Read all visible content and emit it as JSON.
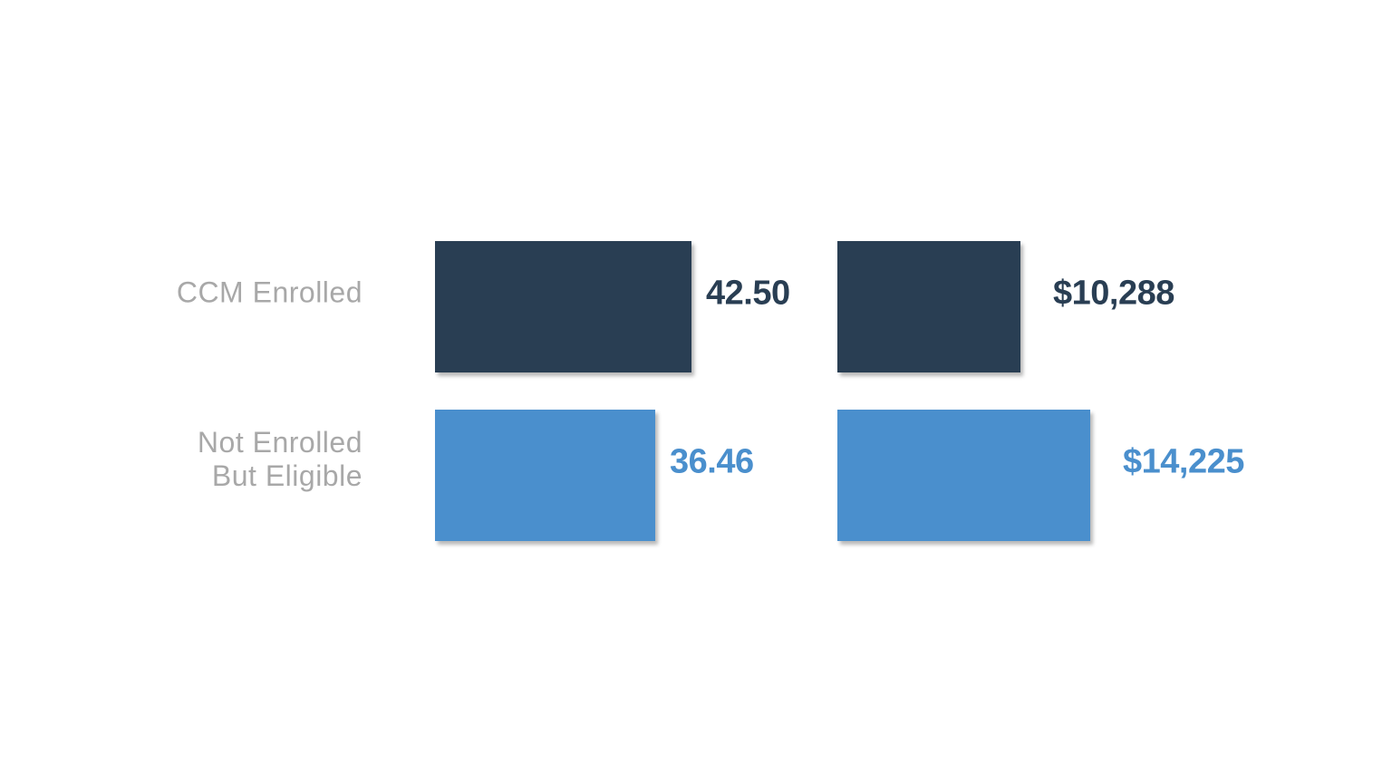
{
  "slide": {
    "background": "#FFFFFF"
  },
  "row_labels": [
    {
      "lines": [
        "CCM Enrolled"
      ]
    },
    {
      "lines": [
        "Not Enrolled",
        "But Eligible"
      ]
    }
  ],
  "chart_data": [
    {
      "type": "bar",
      "orientation": "horizontal",
      "title": "",
      "categories": [
        "CCM Enrolled",
        "Not Enrolled But Eligible"
      ],
      "values": [
        42.5,
        36.46
      ],
      "value_labels": [
        "42.50",
        "36.46"
      ],
      "xlim": [
        0,
        42.5
      ],
      "bar_colors": [
        "#293E53",
        "#4A8FCD"
      ],
      "value_label_colors": [
        "#293E53",
        "#4A8FCD"
      ],
      "grid": false,
      "legend": "none"
    },
    {
      "type": "bar",
      "orientation": "horizontal",
      "title": "",
      "categories": [
        "CCM Enrolled",
        "Not Enrolled But Eligible"
      ],
      "values": [
        10288,
        14225
      ],
      "value_labels": [
        "$10,288",
        "$14,225"
      ],
      "xlim": [
        0,
        14225
      ],
      "bar_colors": [
        "#293E53",
        "#4A8FCD"
      ],
      "value_label_colors": [
        "#293E53",
        "#4A8FCD"
      ],
      "grid": false,
      "legend": "none"
    }
  ],
  "colors": {
    "dark_navy": "#293E53",
    "accent_blue": "#4A8FCD",
    "category_label_gray": "#A8A8A8",
    "background": "#FFFFFF"
  }
}
